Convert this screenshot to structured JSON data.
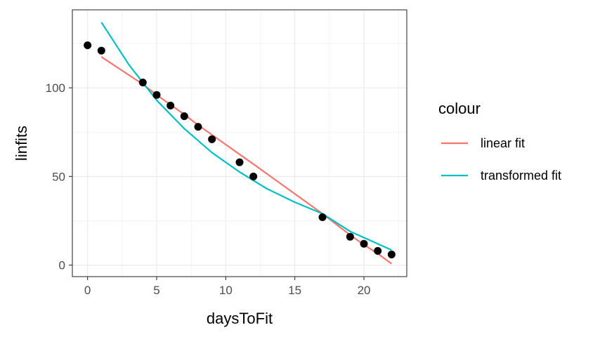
{
  "chart_data": {
    "type": "scatter",
    "xlabel": "daysToFit",
    "ylabel": "linfits",
    "xlim": [
      -1.1,
      23.1
    ],
    "ylim": [
      -6.5,
      144
    ],
    "x_ticks": [
      0,
      5,
      10,
      15,
      20
    ],
    "y_ticks": [
      0,
      50,
      100
    ],
    "grid": true,
    "legend": {
      "title": "colour",
      "position": "right",
      "entries": [
        {
          "label": "linear fit",
          "color": "#F8766D"
        },
        {
          "label": "transformed fit",
          "color": "#00BFC4"
        }
      ]
    },
    "points": {
      "color": "#000000",
      "x": [
        0,
        1,
        4,
        5,
        6,
        7,
        8,
        9,
        11,
        12,
        17,
        19,
        20,
        21,
        22
      ],
      "y": [
        124,
        121,
        103,
        96,
        90,
        84,
        78,
        71,
        58,
        50,
        27,
        16,
        12,
        8,
        6
      ]
    },
    "series": [
      {
        "name": "linear fit",
        "color": "#F8766D",
        "x": [
          1,
          4,
          5,
          6,
          7,
          8,
          9,
          11,
          12,
          17,
          19,
          20,
          21,
          22
        ],
        "y": [
          117.5,
          102.0,
          96.0,
          90.5,
          85.0,
          79.0,
          73.5,
          62.5,
          57.0,
          29.0,
          17.0,
          11.5,
          6.5,
          0.8
        ]
      },
      {
        "name": "transformed fit",
        "color": "#00BFC4",
        "x": [
          1,
          3,
          5,
          7,
          9,
          11,
          13,
          15,
          17,
          19,
          21,
          22
        ],
        "y": [
          137,
          113,
          93,
          77,
          63.5,
          52.5,
          43,
          35.5,
          29,
          19,
          12,
          8.5
        ]
      }
    ]
  }
}
